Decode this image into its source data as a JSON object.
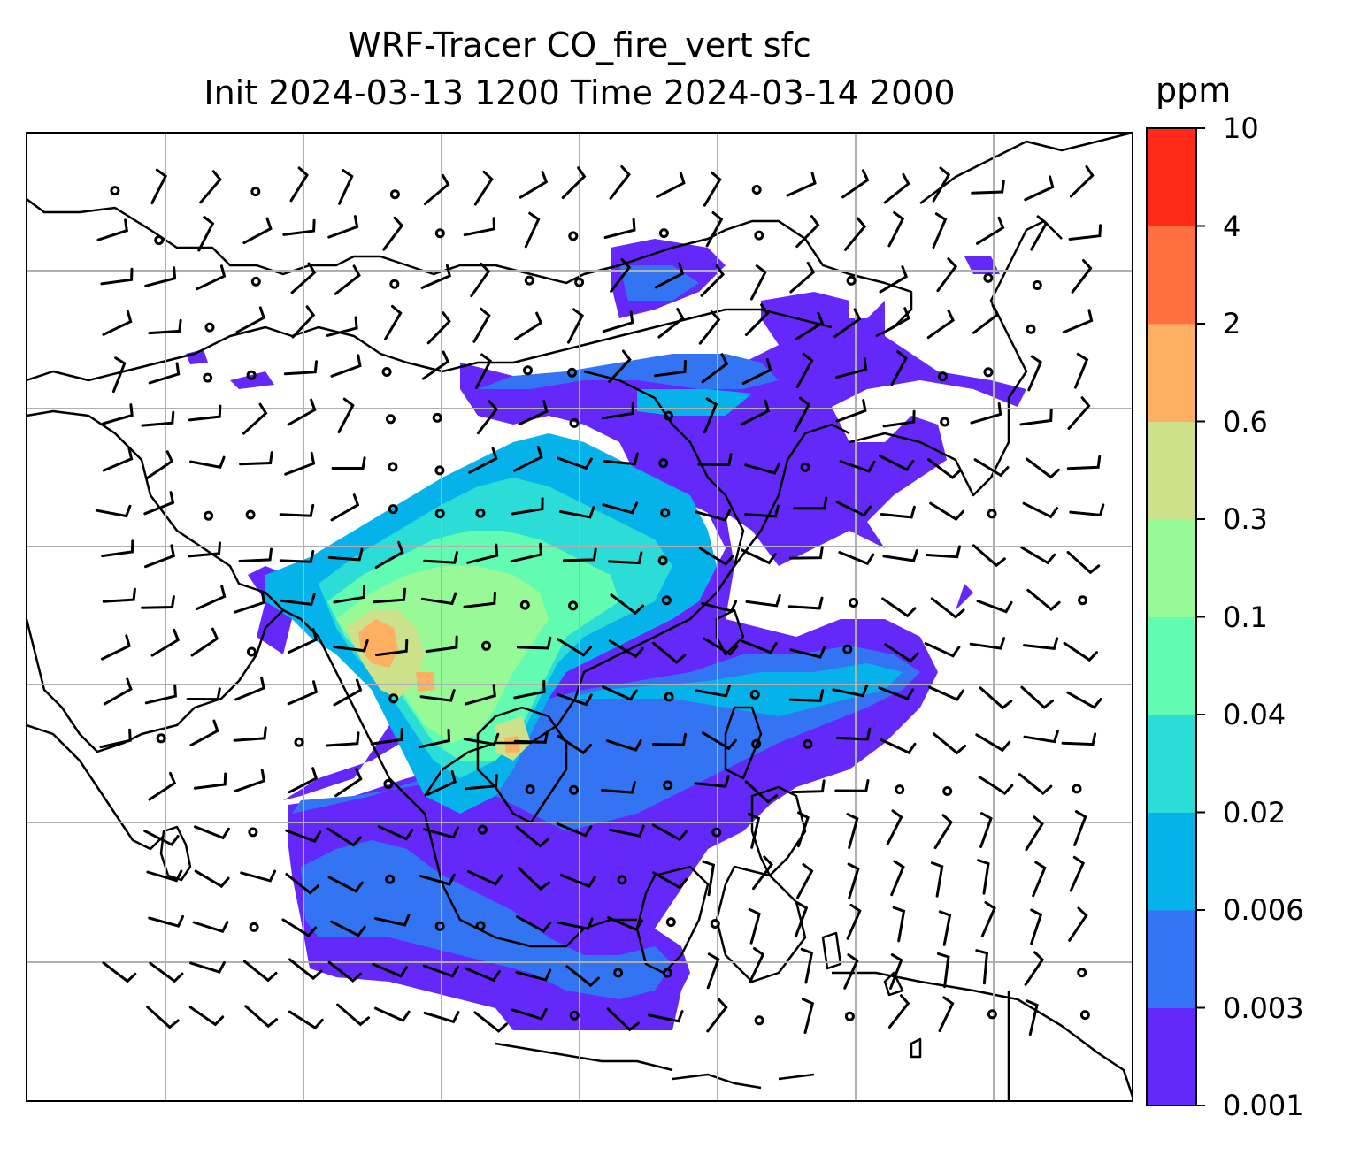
{
  "title": {
    "line1": "WRF-Tracer CO_fire_vert sfc",
    "line2": "Init 2024-03-13 1200 Time 2024-03-14 2000"
  },
  "map": {
    "variable": "CO_fire_vert",
    "level": "sfc",
    "region": "South and East Asia",
    "overlay": "wind barbs",
    "gridlines": true,
    "colors": {
      "land_outline": "#000000",
      "grid": "#b0b0b0",
      "background": "#ffffff"
    }
  },
  "colorbar": {
    "unit": "ppm",
    "levels": [
      "0.001",
      "0.003",
      "0.006",
      "0.02",
      "0.04",
      "0.1",
      "0.3",
      "0.6",
      "2",
      "4",
      "10"
    ],
    "colors": [
      "#6428fa",
      "#3274f2",
      "#06b2ea",
      "#2cdcd6",
      "#62fbb2",
      "#98fa96",
      "#cde18a",
      "#feb062",
      "#ff7040",
      "#ff2a18"
    ]
  },
  "chart_data": {
    "type": "heatmap",
    "title": "WRF-Tracer CO_fire_vert sfc",
    "subtitle": "Init 2024-03-13 1200 Time 2024-03-14 2000",
    "colorbar_label": "ppm",
    "color_levels": [
      0.001,
      0.003,
      0.006,
      0.02,
      0.04,
      0.1,
      0.3,
      0.6,
      2,
      4,
      10
    ],
    "grid": true,
    "legend_position": "right"
  }
}
